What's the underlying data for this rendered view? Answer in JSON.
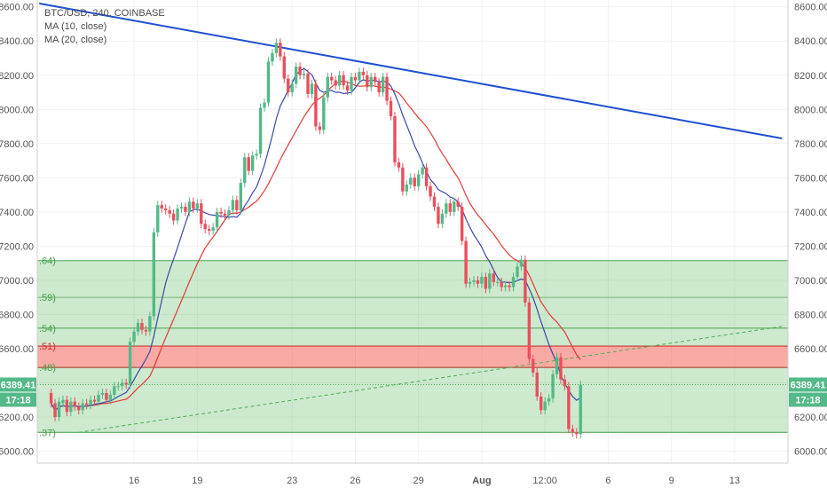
{
  "chart_data": {
    "type": "candlestick",
    "legend": {
      "symbol": "BTC/USD, 240, COINBASE",
      "ma_fast": "MA (10, close)",
      "ma_slow": "MA (20, close)"
    },
    "y_axis": {
      "range": [
        5930,
        8640
      ],
      "ticks": [
        "8600.00",
        "8400.00",
        "8200.00",
        "8000.00",
        "7800.00",
        "7600.00",
        "7400.00",
        "7200.00",
        "7000.00",
        "6800.00",
        "6600.00",
        "6400.00",
        "6200.00",
        "6000.00"
      ]
    },
    "x_axis": {
      "labels": [
        "16",
        "19",
        "23",
        "26",
        "29",
        "Aug",
        "12:00",
        "6",
        "9",
        "13"
      ],
      "label_positions_in_bars": [
        24,
        40,
        64,
        80,
        96,
        112,
        128,
        144,
        160,
        176
      ]
    },
    "last_price": {
      "value": "6389.41",
      "countdown": "17:18"
    },
    "fib_zones": [
      {
        "label": ".64)",
        "top": 7115,
        "bottom": 6720,
        "color": "#4caf50"
      },
      {
        "label": ".59)",
        "level": 6900
      },
      {
        "label": ".54)",
        "level": 6720
      },
      {
        "label": ".51)",
        "top": 6615,
        "bottom": 6490,
        "color": "#f44336"
      },
      {
        "label": ".48)",
        "top": 6490,
        "bottom": 6110,
        "color": "#4caf50"
      },
      {
        "label": ".37)",
        "level": 6110
      }
    ],
    "trendlines": [
      {
        "name": "downtrend",
        "color": "#1f4fcf",
        "from": [
          0,
          8620
        ],
        "to": [
          188,
          7830
        ]
      },
      {
        "name": "uptrend-dashed",
        "color": "#4caf50",
        "from": [
          10,
          6110
        ],
        "to": [
          188,
          6730
        ]
      }
    ],
    "candles": [
      [
        6340,
        6280
      ],
      [
        6280,
        6200
      ],
      [
        6200,
        6290
      ],
      [
        6280,
        6300
      ],
      [
        6300,
        6230
      ],
      [
        6230,
        6290
      ],
      [
        6290,
        6260
      ],
      [
        6260,
        6240
      ],
      [
        6240,
        6280
      ],
      [
        6280,
        6270
      ],
      [
        6270,
        6300
      ],
      [
        6300,
        6290
      ],
      [
        6290,
        6330
      ],
      [
        6330,
        6340
      ],
      [
        6340,
        6300
      ],
      [
        6300,
        6330
      ],
      [
        6330,
        6380
      ],
      [
        6380,
        6380
      ],
      [
        6380,
        6400
      ],
      [
        6400,
        6390
      ],
      [
        6390,
        6640
      ],
      [
        6640,
        6700
      ],
      [
        6700,
        6750
      ],
      [
        6750,
        6710
      ],
      [
        6710,
        6700
      ],
      [
        6700,
        6790
      ],
      [
        6790,
        7280
      ],
      [
        7280,
        7440
      ],
      [
        7440,
        7420
      ],
      [
        7420,
        7410
      ],
      [
        7410,
        7390
      ],
      [
        7390,
        7350
      ],
      [
        7350,
        7420
      ],
      [
        7420,
        7430
      ],
      [
        7430,
        7400
      ],
      [
        7400,
        7460
      ],
      [
        7460,
        7420
      ],
      [
        7420,
        7450
      ],
      [
        7450,
        7330
      ],
      [
        7330,
        7300
      ],
      [
        7300,
        7290
      ],
      [
        7290,
        7310
      ],
      [
        7310,
        7400
      ],
      [
        7400,
        7390
      ],
      [
        7390,
        7380
      ],
      [
        7380,
        7410
      ],
      [
        7410,
        7470
      ],
      [
        7470,
        7410
      ],
      [
        7410,
        7570
      ],
      [
        7570,
        7720
      ],
      [
        7720,
        7640
      ],
      [
        7640,
        7730
      ],
      [
        7730,
        7740
      ],
      [
        7740,
        8010
      ],
      [
        8010,
        8040
      ],
      [
        8040,
        8280
      ],
      [
        8280,
        8330
      ],
      [
        8330,
        8390
      ],
      [
        8390,
        8310
      ],
      [
        8310,
        8180
      ],
      [
        8180,
        8100
      ],
      [
        8100,
        8150
      ],
      [
        8150,
        8250
      ],
      [
        8250,
        8200
      ],
      [
        8200,
        8210
      ],
      [
        8210,
        8090
      ],
      [
        8090,
        8150
      ],
      [
        8150,
        7900
      ],
      [
        7900,
        7880
      ],
      [
        7880,
        8070
      ],
      [
        8070,
        8190
      ],
      [
        8190,
        8170
      ],
      [
        8170,
        8140
      ],
      [
        8140,
        8200
      ],
      [
        8200,
        8140
      ],
      [
        8140,
        8110
      ],
      [
        8110,
        8190
      ],
      [
        8190,
        8170
      ],
      [
        8170,
        8220
      ],
      [
        8220,
        8200
      ],
      [
        8200,
        8130
      ],
      [
        8130,
        8190
      ],
      [
        8190,
        8160
      ],
      [
        8160,
        8100
      ],
      [
        8100,
        8190
      ],
      [
        8190,
        8050
      ],
      [
        8050,
        7960
      ],
      [
        7960,
        7690
      ],
      [
        7690,
        7660
      ],
      [
        7660,
        7520
      ],
      [
        7520,
        7560
      ],
      [
        7560,
        7600
      ],
      [
        7600,
        7550
      ],
      [
        7550,
        7620
      ],
      [
        7620,
        7660
      ],
      [
        7660,
        7550
      ],
      [
        7550,
        7490
      ],
      [
        7490,
        7430
      ],
      [
        7430,
        7330
      ],
      [
        7330,
        7390
      ],
      [
        7390,
        7450
      ],
      [
        7450,
        7400
      ],
      [
        7400,
        7460
      ],
      [
        7460,
        7430
      ],
      [
        7430,
        7230
      ],
      [
        7230,
        6980
      ],
      [
        6980,
        6990
      ],
      [
        6990,
        7000
      ],
      [
        7000,
        6980
      ],
      [
        6980,
        7020
      ],
      [
        7020,
        6950
      ],
      [
        6950,
        7040
      ],
      [
        7040,
        6990
      ],
      [
        6990,
        6990
      ],
      [
        6990,
        6960
      ],
      [
        6960,
        6970
      ],
      [
        6970,
        6960
      ],
      [
        6960,
        7020
      ],
      [
        7020,
        7080
      ],
      [
        7080,
        7120
      ],
      [
        7120,
        6870
      ],
      [
        6870,
        6540
      ],
      [
        6540,
        6460
      ],
      [
        6460,
        6320
      ],
      [
        6320,
        6240
      ],
      [
        6240,
        6290
      ],
      [
        6290,
        6310
      ],
      [
        6310,
        6450
      ],
      [
        6450,
        6550
      ],
      [
        6550,
        6420
      ],
      [
        6420,
        6380
      ],
      [
        6380,
        6130
      ],
      [
        6130,
        6110
      ],
      [
        6110,
        6100
      ],
      [
        6100,
        6389
      ]
    ]
  }
}
